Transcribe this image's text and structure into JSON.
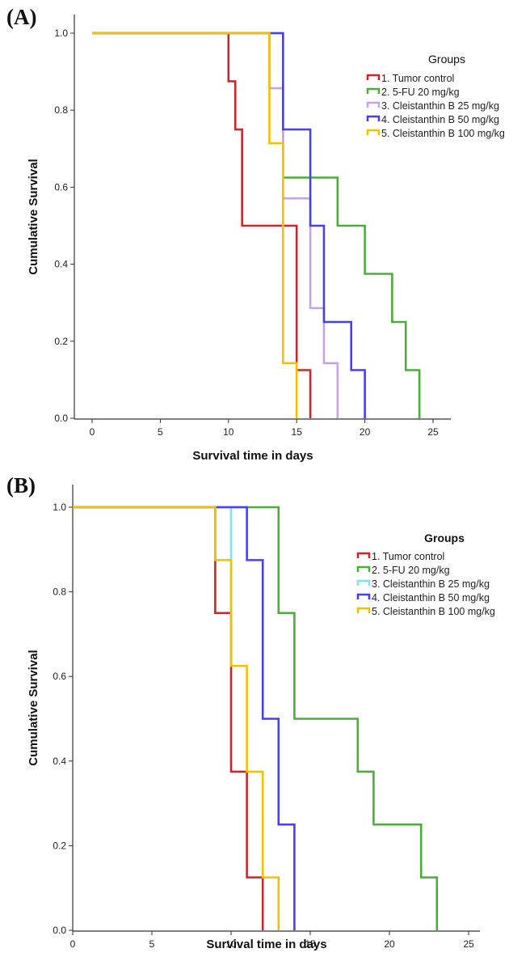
{
  "chart_data": [
    {
      "panel_label": "(A)",
      "type": "line",
      "subtype": "kaplan-meier step",
      "xlabel": "Survival time in days",
      "ylabel": "Cumulative Survival",
      "xlim": [
        0,
        25
      ],
      "ylim": [
        0,
        1
      ],
      "xticks": [
        "0",
        "5",
        "10",
        "15",
        "20",
        "25"
      ],
      "yticks": [
        "0.0",
        "0.2",
        "0.4",
        "0.6",
        "0.8",
        "1.0"
      ],
      "grid": false,
      "legend_title": "Groups",
      "legend_position": "top-right",
      "series": [
        {
          "name": "1. Tumor control",
          "color": "#c8282d",
          "x": [
            0,
            10,
            10.5,
            11,
            12,
            14,
            15,
            16
          ],
          "y": [
            1,
            0.875,
            0.75,
            0.5,
            0.5,
            0.5,
            0.125,
            0
          ]
        },
        {
          "name": "2. 5-FU 20 mg/kg",
          "color": "#4ead3a",
          "x": [
            0,
            14,
            18,
            20,
            22,
            23,
            24
          ],
          "y": [
            1,
            0.625,
            0.5,
            0.375,
            0.25,
            0.125,
            0
          ]
        },
        {
          "name": "3. Cleistanthin B 25 mg/kg",
          "color": "#c6a5e6",
          "x": [
            0,
            13,
            14,
            16,
            17,
            18
          ],
          "y": [
            1,
            0.857,
            0.571,
            0.286,
            0.143,
            0
          ]
        },
        {
          "name": "4. Cleistanthin B 50 mg/kg",
          "color": "#4a3ff0",
          "x": [
            0,
            14,
            16,
            17,
            18,
            19,
            20
          ],
          "y": [
            1,
            0.75,
            0.5,
            0.25,
            0.25,
            0.125,
            0
          ]
        },
        {
          "name": "5. Cleistanthin B 100 mg/kg",
          "color": "#f2c200",
          "x": [
            0,
            13,
            14,
            15
          ],
          "y": [
            1,
            0.714,
            0.143,
            0
          ]
        }
      ]
    },
    {
      "panel_label": "(B)",
      "type": "line",
      "subtype": "kaplan-meier step",
      "xlabel": "Survival time in days",
      "ylabel": "Cumulative Survival",
      "xlim": [
        0,
        25
      ],
      "ylim": [
        0,
        1
      ],
      "xticks": [
        "0",
        "5",
        "10",
        "15",
        "20",
        "25"
      ],
      "yticks": [
        "0.0",
        "0.2",
        "0.4",
        "0.6",
        "0.8",
        "1.0"
      ],
      "grid": false,
      "legend_title": "Groups",
      "legend_position": "top-right",
      "series": [
        {
          "name": "1. Tumor control",
          "color": "#c8282d",
          "x": [
            0,
            9,
            10,
            11,
            12
          ],
          "y": [
            1,
            0.75,
            0.375,
            0.125,
            0
          ]
        },
        {
          "name": "2. 5-FU 20 mg/kg",
          "color": "#4ead3a",
          "x": [
            0,
            13,
            14,
            18,
            19,
            22,
            23
          ],
          "y": [
            1,
            0.75,
            0.5,
            0.375,
            0.25,
            0.125,
            0
          ]
        },
        {
          "name": "3. Cleistanthin B 25 mg/kg",
          "color": "#7fe3ee",
          "x": [
            0,
            10
          ],
          "y": [
            1,
            0.625
          ]
        },
        {
          "name": "4. Cleistanthin B 50 mg/kg",
          "color": "#4a3ff0",
          "x": [
            0,
            11,
            12,
            13,
            14
          ],
          "y": [
            1,
            0.875,
            0.5,
            0.25,
            0
          ]
        },
        {
          "name": "5. Cleistanthin B 100 mg/kg",
          "color": "#f2c200",
          "x": [
            0,
            9,
            10,
            11,
            12,
            13
          ],
          "y": [
            1,
            0.875,
            0.625,
            0.375,
            0.125,
            0
          ]
        }
      ]
    }
  ]
}
